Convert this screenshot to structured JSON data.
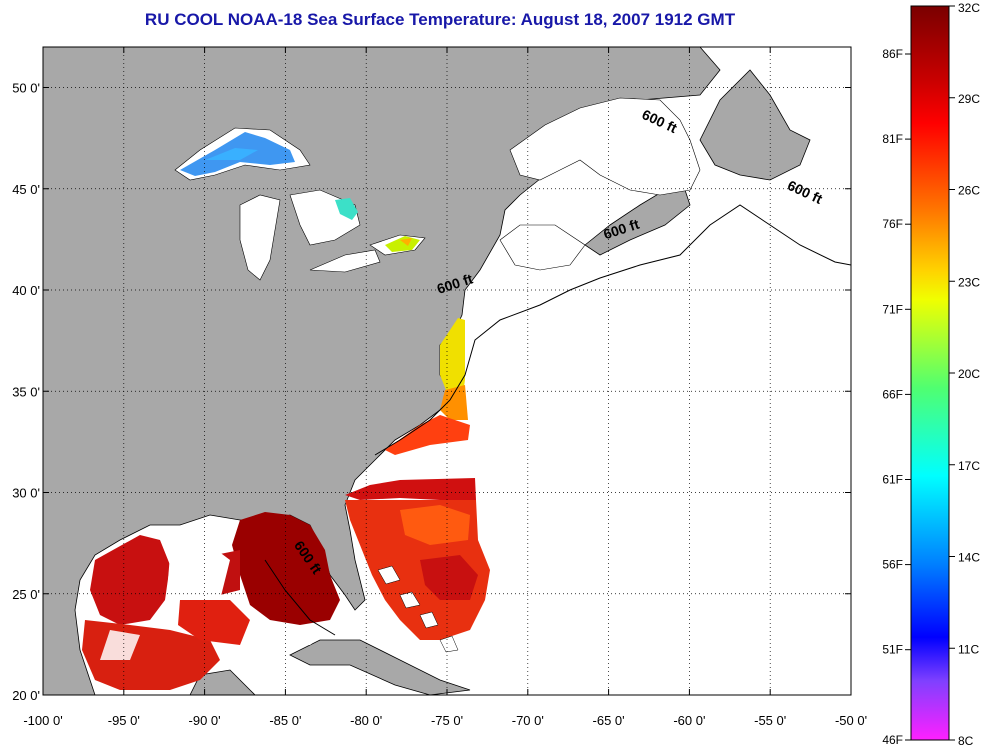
{
  "title": "RU COOL  NOAA-18  Sea Surface Temperature:  August 18, 2007 1912 GMT",
  "map": {
    "lon_range": [
      -100,
      -50
    ],
    "lat_range": [
      20,
      52
    ],
    "lon_ticks": [
      "-100 0'",
      "-95 0'",
      "-90 0'",
      "-85 0'",
      "-80 0'",
      "-75 0'",
      "-70 0'",
      "-65 0'",
      "-60 0'",
      "-55 0'",
      "-50 0'"
    ],
    "lat_ticks": [
      "20 0'",
      "25 0'",
      "30 0'",
      "35 0'",
      "40 0'",
      "45 0'",
      "50 0'"
    ],
    "grid": true,
    "land_color": "#a8a8a8",
    "water_no_data_color": "#ffffff",
    "contour_labels": [
      {
        "text": "600 ft",
        "lon": -75.5,
        "lat": 39.8,
        "rotate": -18
      },
      {
        "text": "600 ft",
        "lon": -65.2,
        "lat": 42.5,
        "rotate": -18
      },
      {
        "text": "600 ft",
        "lon": -54.0,
        "lat": 45.0,
        "rotate": 25
      },
      {
        "text": "600 ft",
        "lon": -63.0,
        "lat": 48.5,
        "rotate": 25
      },
      {
        "text": "600 ft",
        "lon": -84.5,
        "lat": 27.4,
        "rotate": 55
      }
    ]
  },
  "colorbar": {
    "celsius_labels": [
      "32C",
      "29C",
      "26C",
      "23C",
      "20C",
      "17C",
      "14C",
      "11C",
      "8C"
    ],
    "fahrenheit_labels": [
      "86F",
      "81F",
      "76F",
      "71F",
      "66F",
      "61F",
      "56F",
      "51F",
      "46F"
    ]
  }
}
